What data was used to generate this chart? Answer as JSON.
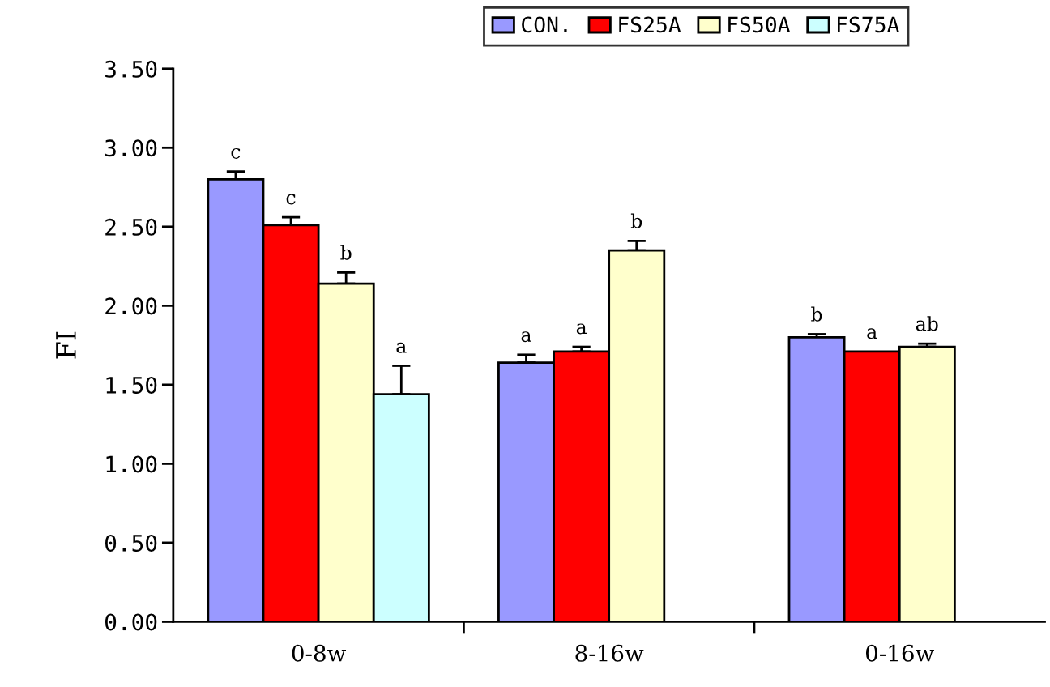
{
  "chart_data": {
    "type": "bar",
    "ylabel": "FI",
    "categories": [
      "0-8w",
      "8-16w",
      "0-16w"
    ],
    "series": [
      {
        "name": "CON.",
        "color": "#9999ff",
        "values": [
          2.8,
          1.64,
          1.8
        ],
        "errors": [
          [
            2.8,
            2.85
          ],
          [
            1.64,
            1.69
          ],
          [
            1.8,
            1.82
          ]
        ],
        "value_labels": [
          "c",
          "a",
          "b"
        ]
      },
      {
        "name": "FS25A",
        "color": "#ff0000",
        "values": [
          2.51,
          1.71,
          1.71
        ],
        "errors": [
          [
            2.51,
            2.56
          ],
          [
            1.71,
            1.74
          ],
          null
        ],
        "value_labels": [
          "c",
          "a",
          "a"
        ]
      },
      {
        "name": "FS50A",
        "color": "#ffffcc",
        "values": [
          2.14,
          2.35,
          1.74
        ],
        "errors": [
          [
            2.14,
            2.21
          ],
          [
            2.35,
            2.41
          ],
          [
            1.74,
            1.76
          ]
        ],
        "value_labels": [
          "b",
          "b",
          "ab"
        ]
      },
      {
        "name": "FS75A",
        "color": "#ccffff",
        "values": [
          1.44,
          null,
          null
        ],
        "errors": [
          [
            1.44,
            1.62
          ],
          null,
          null
        ],
        "value_labels": [
          "a",
          null,
          null
        ]
      }
    ],
    "ylim": [
      0,
      3.5
    ],
    "yticks": [
      {
        "value": 0,
        "label": "0.00"
      },
      {
        "value": 0.5,
        "label": "0.50"
      },
      {
        "value": 1,
        "label": "1.00"
      },
      {
        "value": 1.5,
        "label": "1.50"
      },
      {
        "value": 2,
        "label": "2.00"
      },
      {
        "value": 2.5,
        "label": "2.50"
      },
      {
        "value": 3,
        "label": "3.00"
      },
      {
        "value": 3.5,
        "label": "3.50"
      }
    ],
    "grid": false,
    "legend": "top"
  }
}
